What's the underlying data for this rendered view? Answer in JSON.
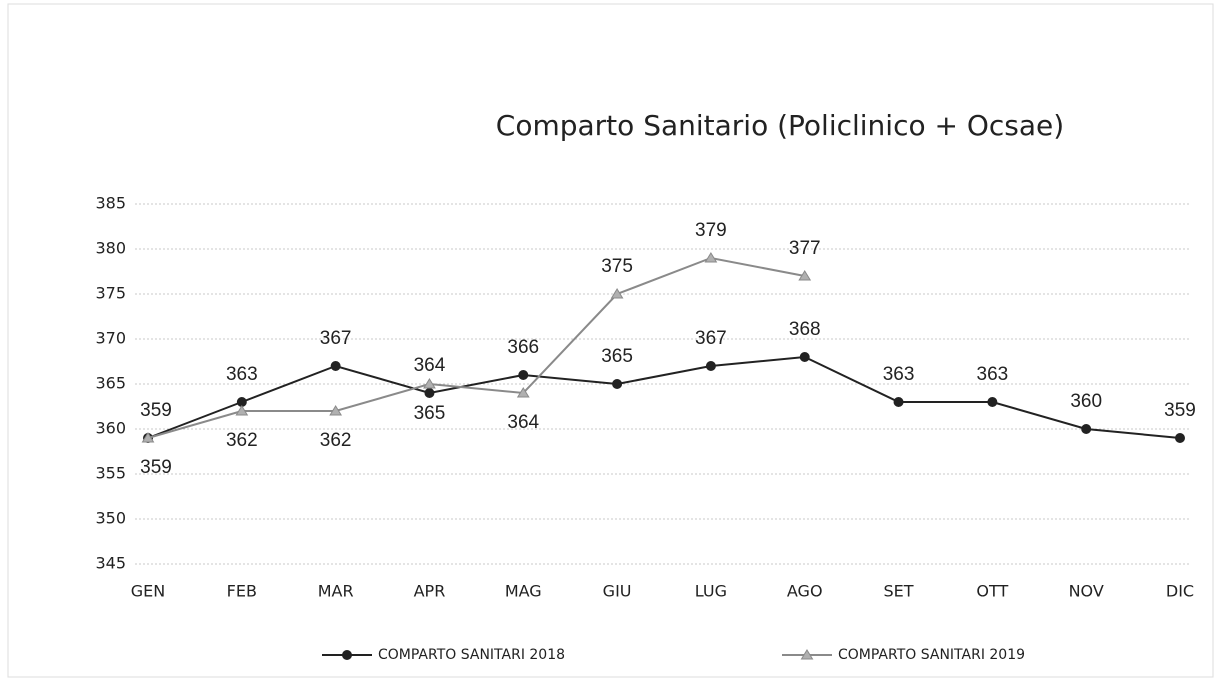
{
  "chart_data": {
    "type": "line",
    "title": "Comparto Sanitario (Policlinico + Ocsae)",
    "categories": [
      "GEN",
      "FEB",
      "MAR",
      "APR",
      "MAG",
      "GIU",
      "LUG",
      "AGO",
      "SET",
      "OTT",
      "NOV",
      "DIC"
    ],
    "series": [
      {
        "name": "COMPARTO SANITARI 2018",
        "color": "#222222",
        "marker": "circle",
        "values": [
          359,
          363,
          367,
          364,
          366,
          365,
          367,
          368,
          363,
          363,
          360,
          359
        ]
      },
      {
        "name": "COMPARTO SANITARI 2019",
        "color": "#8a8a8a",
        "marker": "triangle",
        "values": [
          359,
          362,
          362,
          365,
          364,
          375,
          379,
          377,
          null,
          null,
          null,
          null
        ]
      }
    ],
    "ylim": [
      345,
      385
    ],
    "yticks": [
      345,
      350,
      355,
      360,
      365,
      370,
      375,
      380,
      385
    ],
    "grid": true,
    "legend": "bottom"
  }
}
